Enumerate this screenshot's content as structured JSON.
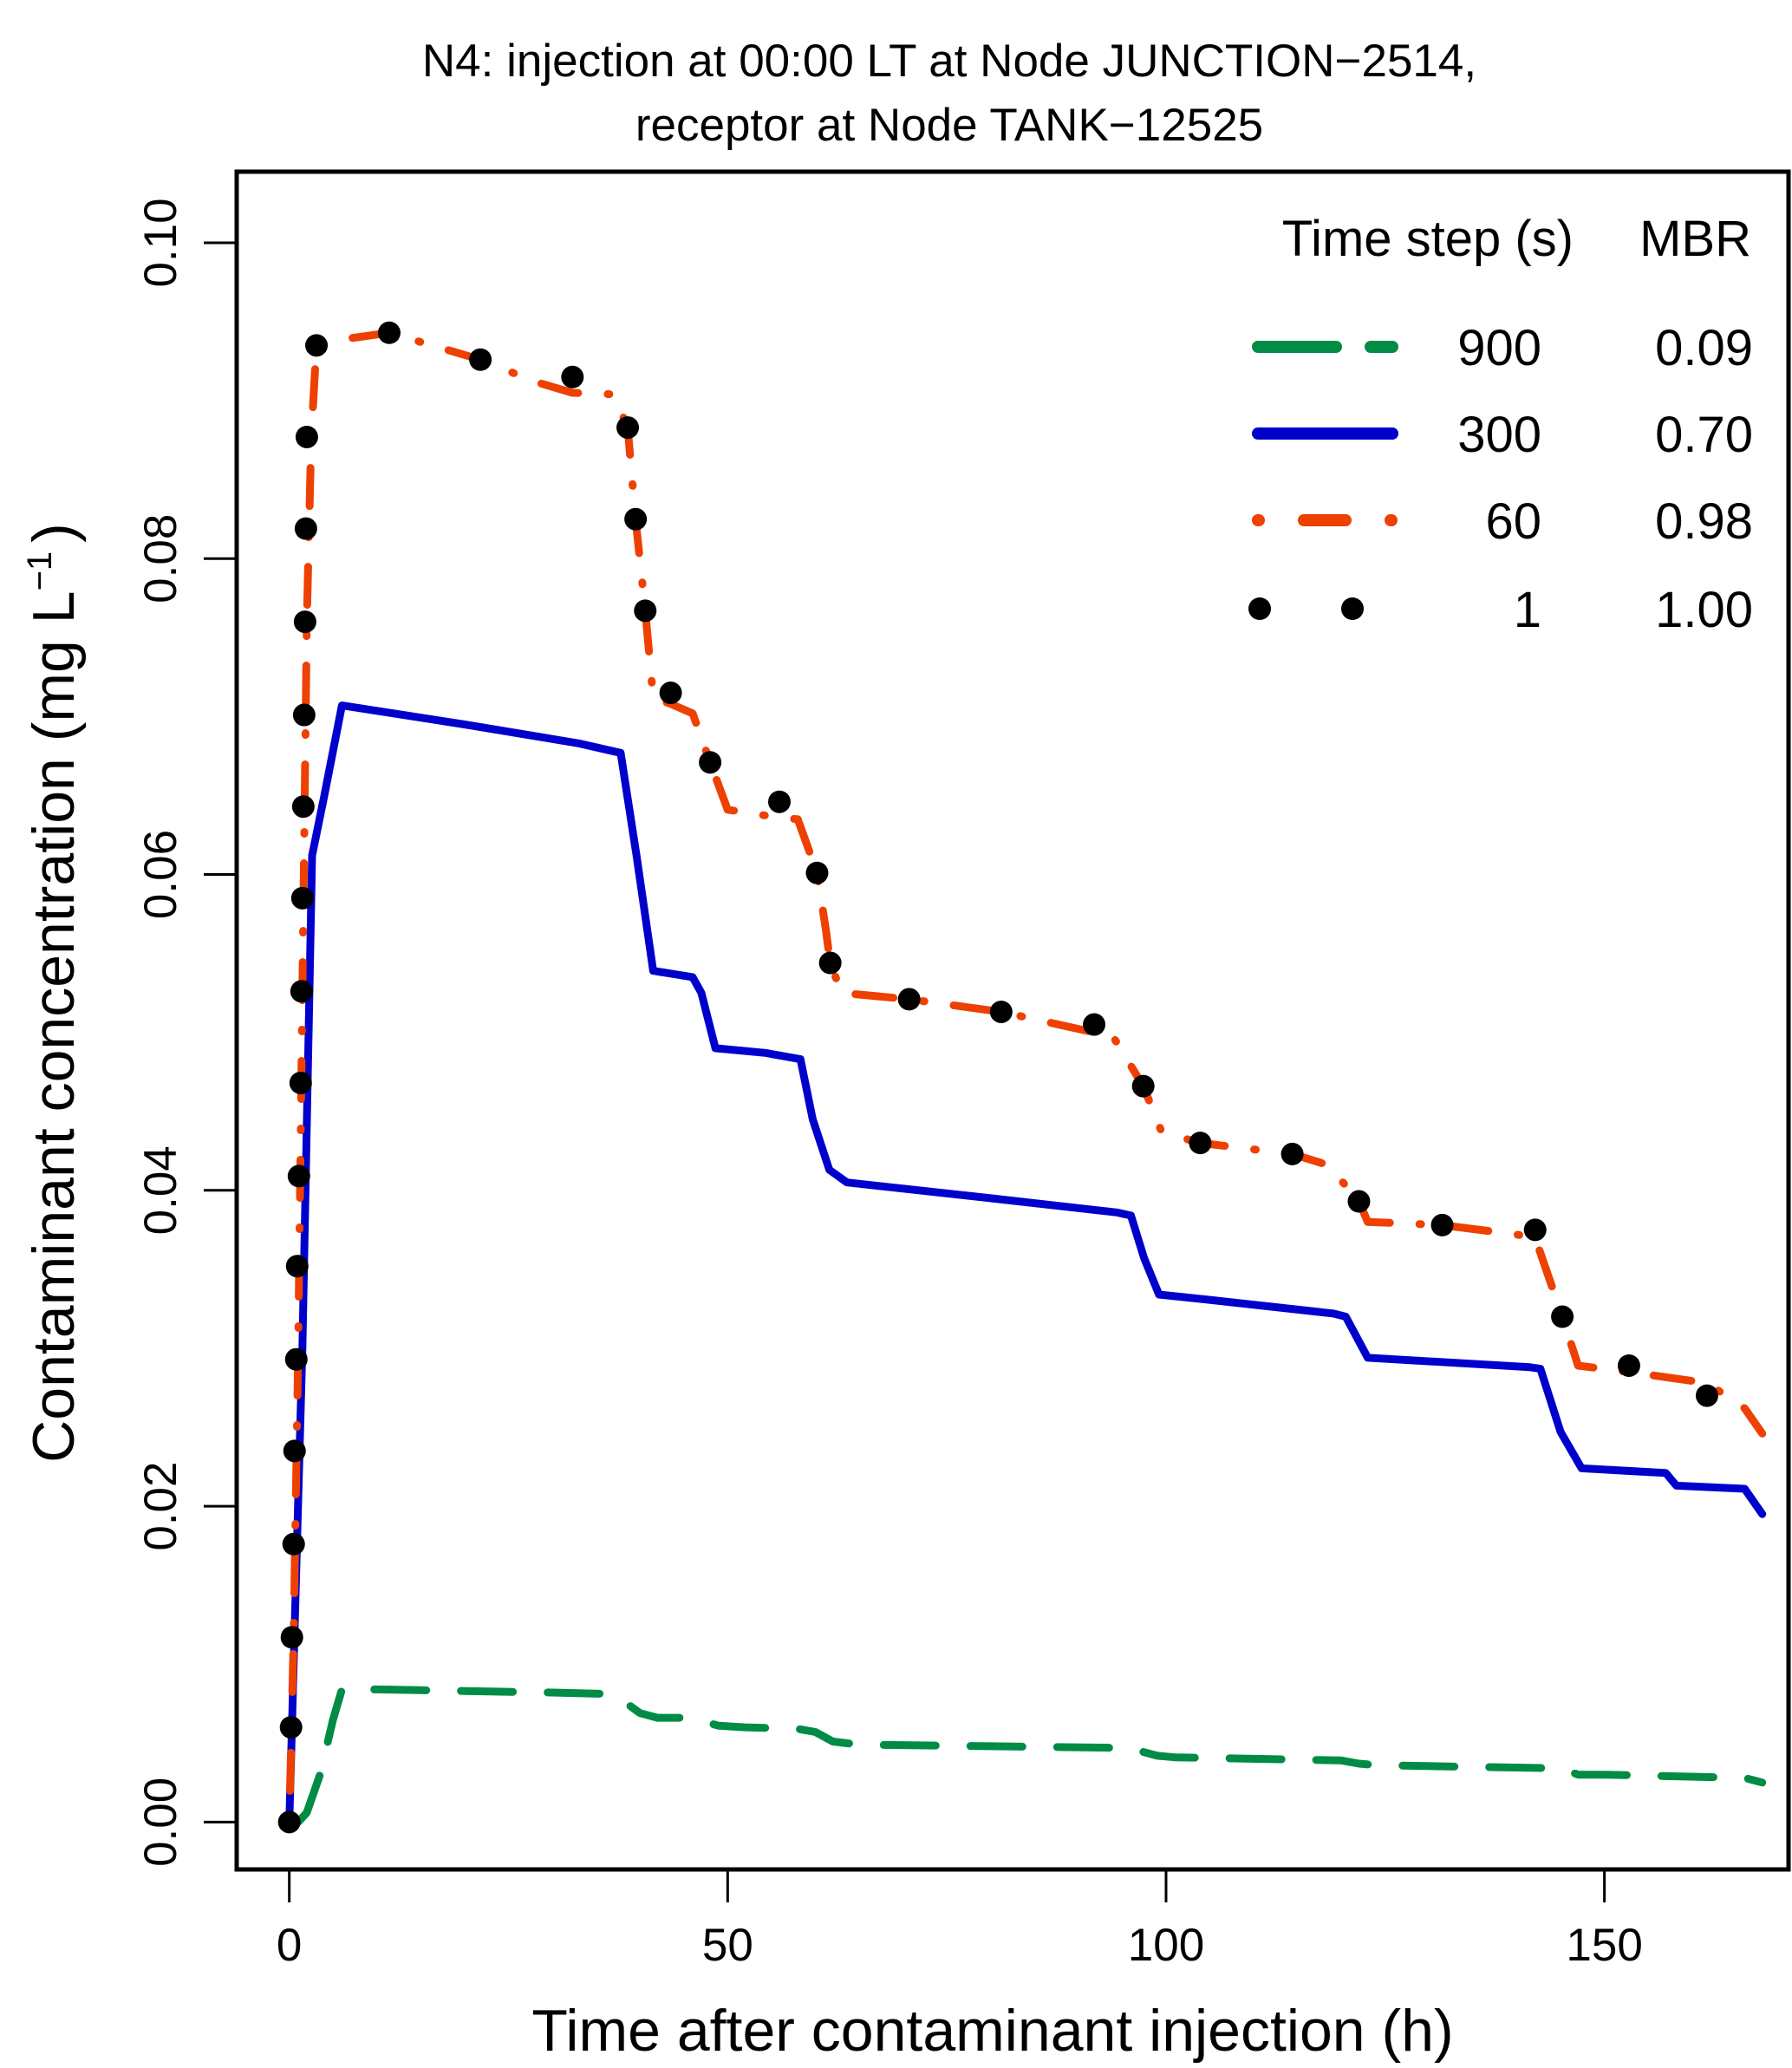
{
  "chart_data": {
    "type": "line",
    "title": "N4: injection at 00:00 LT at Node JUNCTION−2514,",
    "subtitle": "receptor at Node TANK−12525",
    "xlabel": "Time after contaminant injection (h)",
    "ylabel": "Contaminant concentration (mg L",
    "ylabel_superscript": "−1",
    "ylabel_close": ")",
    "xlim": [
      -6,
      171
    ],
    "ylim": [
      -0.003,
      0.1045
    ],
    "x_ticks": [
      0,
      50,
      100,
      150
    ],
    "x_tick_labels": [
      "0",
      "50",
      "100",
      "150"
    ],
    "y_ticks": [
      0.0,
      0.02,
      0.04,
      0.06,
      0.08,
      0.1
    ],
    "y_tick_labels": [
      "0.00",
      "0.02",
      "0.04",
      "0.06",
      "0.08",
      "0.10"
    ],
    "grid": false,
    "legend": {
      "placement": "top-right",
      "header_timestep": "Time step (s)",
      "header_mbr": "MBR",
      "entries": [
        {
          "timestep": "900",
          "mbr": "0.09",
          "series": 0
        },
        {
          "timestep": "300",
          "mbr": "0.70",
          "series": 1
        },
        {
          "timestep": "60",
          "mbr": "0.98",
          "series": 2
        },
        {
          "timestep": "1",
          "mbr": "1.00",
          "series": 3
        }
      ]
    },
    "series": [
      {
        "name": "900 s",
        "style": "dashed",
        "color": "#008C45",
        "x": [
          1,
          2,
          3.5,
          5,
          6,
          10,
          20,
          30,
          37,
          40,
          42,
          45,
          47,
          49,
          52,
          58,
          60,
          62,
          65,
          80,
          95,
          97,
          99,
          101,
          120,
          122,
          124,
          145,
          147,
          150,
          166,
          168
        ],
        "y": [
          0.0,
          0.0006,
          0.003,
          0.0065,
          0.0084,
          0.0084,
          0.0083,
          0.0082,
          0.0081,
          0.0069,
          0.0066,
          0.0066,
          0.0064,
          0.0061,
          0.006,
          0.0059,
          0.0057,
          0.0051,
          0.0049,
          0.0048,
          0.0047,
          0.0045,
          0.0042,
          0.0041,
          0.0039,
          0.0037,
          0.0036,
          0.0034,
          0.003,
          0.003,
          0.0028,
          0.0025
        ]
      },
      {
        "name": "300 s",
        "style": "solid",
        "color": "#0000CC",
        "x": [
          0,
          1.5,
          2.6,
          4,
          6,
          20,
          33,
          37.8,
          39.6,
          41.5,
          46,
          47,
          48.6,
          54.3,
          58.3,
          59.7,
          61.6,
          63.6,
          80,
          94.4,
          96,
          97.5,
          99.2,
          104.4,
          119.1,
          120.5,
          123,
          141.5,
          142.7,
          145,
          147.4,
          157,
          158.2,
          166,
          168
        ],
        "y": [
          0.0,
          0.03,
          0.0612,
          0.065,
          0.0707,
          0.0695,
          0.0683,
          0.0677,
          0.0612,
          0.0539,
          0.0535,
          0.0525,
          0.049,
          0.0487,
          0.0483,
          0.0445,
          0.0413,
          0.0405,
          0.0395,
          0.0386,
          0.0384,
          0.0357,
          0.0334,
          0.0331,
          0.0322,
          0.032,
          0.0294,
          0.0288,
          0.0287,
          0.0247,
          0.0224,
          0.0221,
          0.0213,
          0.0211,
          0.0195
        ]
      },
      {
        "name": "60 s",
        "style": "dotdash",
        "color": "#EE4000",
        "x": [
          0,
          0.5,
          1,
          1.5,
          2,
          2.5,
          3.1,
          5,
          11.4,
          21.8,
          28,
          32.3,
          37,
          38.6,
          39.5,
          40.6,
          41.5,
          43.5,
          46,
          48,
          50,
          55.9,
          58,
          60.2,
          61.2,
          61.7,
          63,
          70.7,
          81.2,
          91.8,
          94,
          97.4,
          99.5,
          103.9,
          114.4,
          118.5,
          122,
          123,
          131.5,
          140,
          142.1,
          145.2,
          147,
          152.8,
          161.7,
          166,
          168
        ],
        "y": [
          0.0,
          0.0117,
          0.0293,
          0.0526,
          0.076,
          0.0877,
          0.0935,
          0.0938,
          0.0943,
          0.0926,
          0.0912,
          0.0905,
          0.0904,
          0.0883,
          0.0825,
          0.0767,
          0.0712,
          0.0708,
          0.0702,
          0.0671,
          0.0641,
          0.0636,
          0.0635,
          0.0601,
          0.0565,
          0.0544,
          0.0525,
          0.0521,
          0.0513,
          0.05,
          0.0497,
          0.0466,
          0.0437,
          0.043,
          0.0423,
          0.0416,
          0.0393,
          0.038,
          0.0378,
          0.0372,
          0.037,
          0.032,
          0.0289,
          0.0285,
          0.0278,
          0.0262,
          0.0246
        ]
      },
      {
        "name": "1 s",
        "style": "points",
        "color": "#000000",
        "x": [
          0,
          0.2,
          0.3,
          0.5,
          0.6,
          0.8,
          0.9,
          1.1,
          1.3,
          1.4,
          1.5,
          1.6,
          1.7,
          1.8,
          1.9,
          2.0,
          3.1,
          11.4,
          21.8,
          32.3,
          38.6,
          39.5,
          40.6,
          43.5,
          48.0,
          55.9,
          60.2,
          61.7,
          70.7,
          81.2,
          91.8,
          97.4,
          103.9,
          114.4,
          122.0,
          131.5,
          142.1,
          145.2,
          152.8,
          161.7
        ],
        "y": [
          0.0,
          0.006,
          0.0117,
          0.0176,
          0.0235,
          0.0293,
          0.0352,
          0.0409,
          0.0468,
          0.0526,
          0.0585,
          0.0643,
          0.0701,
          0.076,
          0.0819,
          0.0877,
          0.0935,
          0.0943,
          0.0926,
          0.0915,
          0.0883,
          0.0825,
          0.0767,
          0.0715,
          0.0671,
          0.0646,
          0.0601,
          0.0544,
          0.0521,
          0.0513,
          0.0505,
          0.0466,
          0.043,
          0.0423,
          0.0393,
          0.0378,
          0.0375,
          0.032,
          0.0289,
          0.027
        ]
      }
    ]
  }
}
